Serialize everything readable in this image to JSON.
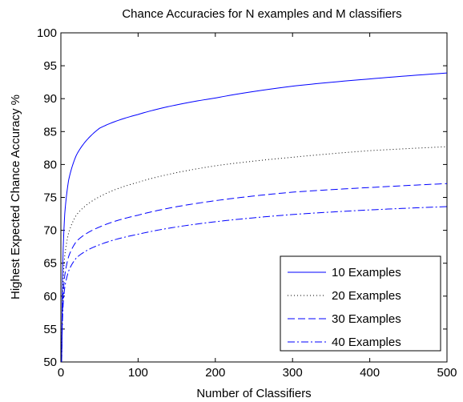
{
  "chart_data": {
    "type": "line",
    "title": "Chance Accuracies for N examples and M classifiers",
    "xlabel": "Number of Classifiers",
    "ylabel": "Highest Expected Chance Accuracy %",
    "xlim": [
      0,
      500
    ],
    "ylim": [
      50,
      100
    ],
    "xticks": [
      0,
      100,
      200,
      300,
      400,
      500
    ],
    "yticks": [
      50,
      55,
      60,
      65,
      70,
      75,
      80,
      85,
      90,
      95,
      100
    ],
    "grid": false,
    "legend_position": "bottom-right",
    "series": [
      {
        "name": "10 Examples",
        "style": "solid",
        "color": "#0000ff",
        "x": [
          1,
          2,
          3,
          5,
          10,
          20,
          50,
          100,
          200,
          300,
          400,
          500
        ],
        "y": [
          50.0,
          61.5,
          67.2,
          72.5,
          77.6,
          81.4,
          85.5,
          87.6,
          90.1,
          91.9,
          93.0,
          93.9
        ]
      },
      {
        "name": "20 Examples",
        "style": "dotted",
        "color": "#000000",
        "x": [
          1,
          2,
          3,
          5,
          10,
          20,
          50,
          100,
          200,
          300,
          400,
          500
        ],
        "y": [
          50.0,
          58.5,
          62.6,
          66.1,
          69.6,
          72.3,
          75.1,
          77.3,
          79.8,
          81.1,
          82.1,
          82.7
        ]
      },
      {
        "name": "30 Examples",
        "style": "dashed",
        "color": "#0000ff",
        "x": [
          1,
          2,
          3,
          5,
          10,
          20,
          50,
          100,
          200,
          300,
          400,
          500
        ],
        "y": [
          50.0,
          57.0,
          60.3,
          63.1,
          66.0,
          68.3,
          70.5,
          72.3,
          74.5,
          75.8,
          76.5,
          77.1
        ]
      },
      {
        "name": "40 Examples",
        "style": "dashdot",
        "color": "#0000ff",
        "x": [
          1,
          2,
          3,
          5,
          10,
          20,
          50,
          100,
          200,
          300,
          400,
          500
        ],
        "y": [
          50.0,
          56.0,
          58.8,
          61.3,
          63.8,
          65.8,
          67.8,
          69.4,
          71.3,
          72.4,
          73.1,
          73.6
        ]
      }
    ]
  }
}
